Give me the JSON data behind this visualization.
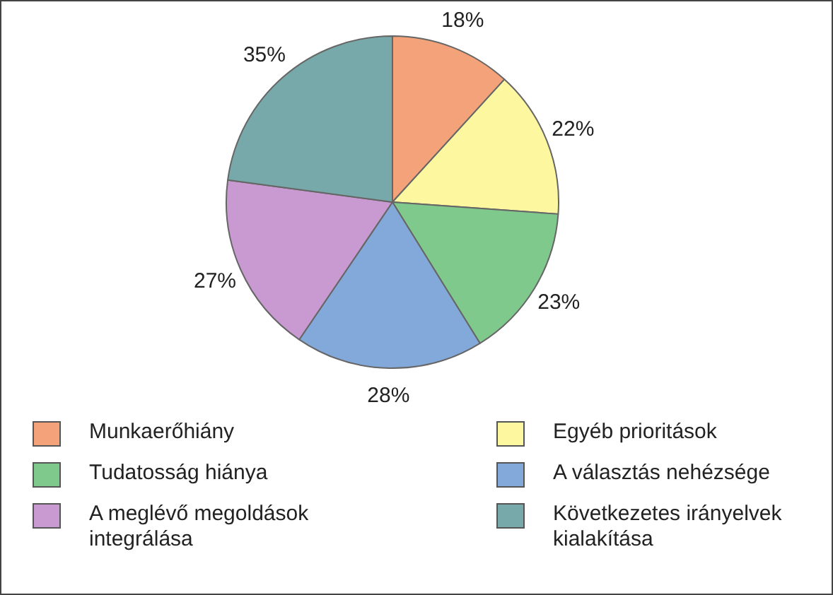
{
  "chart_data": {
    "type": "pie",
    "categories": [
      "Munkaerőhiány",
      "Egyéb prioritások",
      "Tudatosság hiánya",
      "A választás nehézsége",
      "A meglévő megoldások integrálása",
      "Következetes irányelvek kialakítása"
    ],
    "values": [
      18,
      22,
      23,
      28,
      27,
      35
    ],
    "value_labels": [
      "18%",
      "22%",
      "23%",
      "28%",
      "27%",
      "35%"
    ],
    "colors": [
      "#f4a27a",
      "#fdf8a0",
      "#80c98c",
      "#82a9d9",
      "#c99ad2",
      "#78a9aa"
    ],
    "legend": "bottom"
  }
}
